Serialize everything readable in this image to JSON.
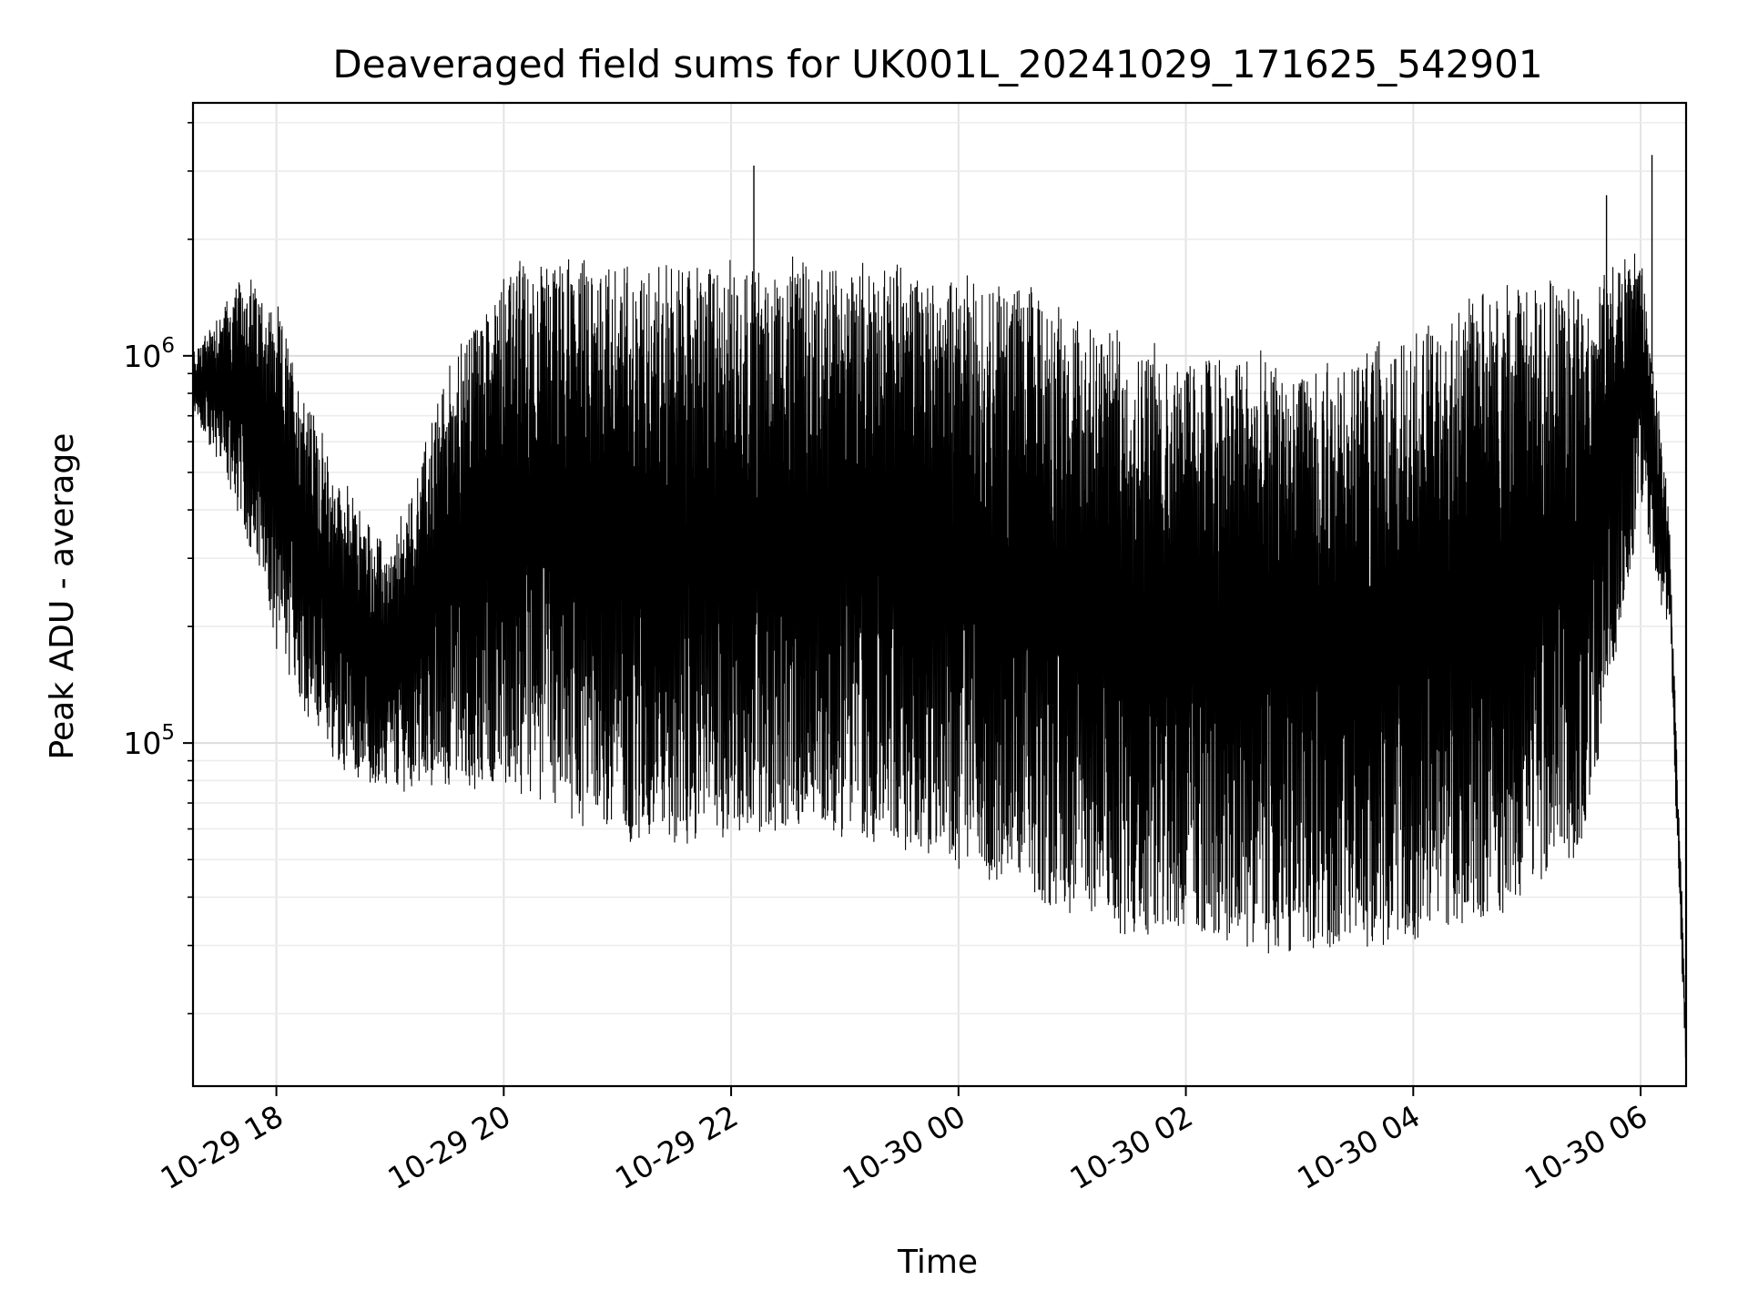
{
  "chart_data": {
    "type": "line",
    "title": "Deaveraged field sums for UK001L_20241029_171625_542901",
    "xlabel": "Time",
    "ylabel": "Peak ADU - average",
    "x_range": [
      "2024-10-29 17:16",
      "2024-10-30 06:24"
    ],
    "y_scale": "log",
    "y_range": [
      13000,
      4500000
    ],
    "grid": true,
    "line_color": "#000000",
    "x_ticks": [
      {
        "label": "10-29 18",
        "value": "2024-10-29 18:00"
      },
      {
        "label": "10-29 20",
        "value": "2024-10-29 20:00"
      },
      {
        "label": "10-29 22",
        "value": "2024-10-29 22:00"
      },
      {
        "label": "10-30 00",
        "value": "2024-10-30 00:00"
      },
      {
        "label": "10-30 02",
        "value": "2024-10-30 02:00"
      },
      {
        "label": "10-30 04",
        "value": "2024-10-30 04:00"
      },
      {
        "label": "10-30 06",
        "value": "2024-10-30 06:00"
      }
    ],
    "y_ticks": [
      {
        "base": "10",
        "exp": "5",
        "value": 100000
      },
      {
        "base": "10",
        "exp": "6",
        "value": 1000000
      }
    ],
    "series": [
      {
        "x": [
          "2024-10-29 17:16",
          "2024-10-29 17:30",
          "2024-10-29 17:45",
          "2024-10-29 18:00",
          "2024-10-29 18:30",
          "2024-10-29 19:00",
          "2024-10-29 19:30",
          "2024-10-29 20:00",
          "2024-10-29 20:30",
          "2024-10-29 21:00",
          "2024-10-29 21:30",
          "2024-10-29 22:00",
          "2024-10-29 22:30",
          "2024-10-29 23:00",
          "2024-10-29 23:30",
          "2024-10-30 00:00",
          "2024-10-30 00:30",
          "2024-10-30 01:00",
          "2024-10-30 01:30",
          "2024-10-30 02:00",
          "2024-10-30 02:30",
          "2024-10-30 03:00",
          "2024-10-30 03:30",
          "2024-10-30 04:00",
          "2024-10-30 04:30",
          "2024-10-30 05:00",
          "2024-10-30 05:30",
          "2024-10-30 06:00",
          "2024-10-30 06:15",
          "2024-10-30 06:24"
        ],
        "y_high": [
          1000000,
          1300000,
          1600000,
          1300000,
          500000,
          300000,
          900000,
          1700000,
          1750000,
          1700000,
          1700000,
          1700000,
          1700000,
          1700000,
          1700000,
          1600000,
          1500000,
          1300000,
          1100000,
          1000000,
          1000000,
          900000,
          1000000,
          1100000,
          1400000,
          1500000,
          1500000,
          2000000,
          400000,
          18000
        ],
        "y_low": [
          700000,
          550000,
          350000,
          180000,
          90000,
          80000,
          80000,
          80000,
          65000,
          58000,
          55000,
          60000,
          62000,
          60000,
          55000,
          50000,
          42000,
          38000,
          33000,
          33000,
          30000,
          30000,
          30000,
          32000,
          35000,
          42000,
          55000,
          400000,
          200000,
          14000
        ]
      }
    ]
  }
}
